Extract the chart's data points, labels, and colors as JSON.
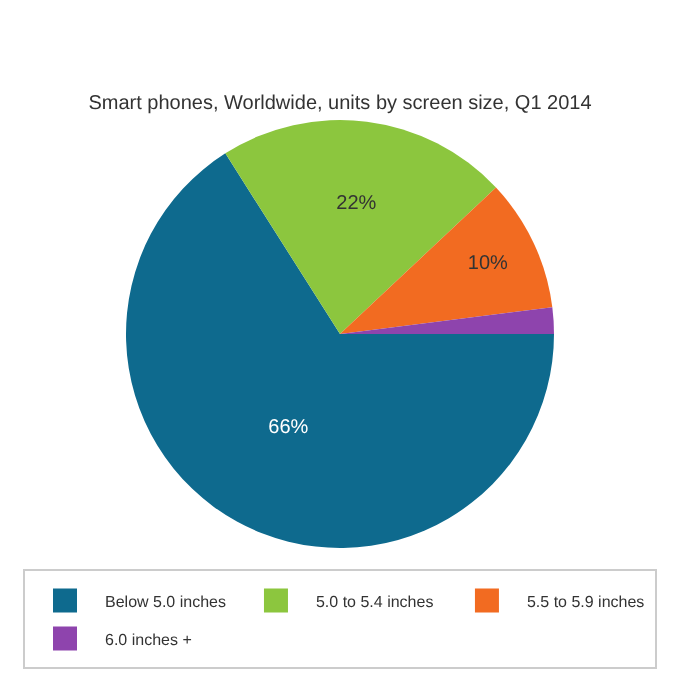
{
  "chart_data": {
    "type": "pie",
    "title": "Smart phones, Worldwide, units by screen size, Q1 2014",
    "categories": [
      "Below 5.0 inches",
      "5.0 to 5.4 inches",
      "5.5 to 5.9 inches",
      "6.0 inches +"
    ],
    "values": [
      66,
      22,
      10,
      2
    ],
    "colors": [
      "#0e6a8e",
      "#8cc63e",
      "#f26b21",
      "#8e44ad"
    ],
    "value_labels": [
      "66%",
      "22%",
      "10%",
      null
    ],
    "legend": "bottom"
  }
}
